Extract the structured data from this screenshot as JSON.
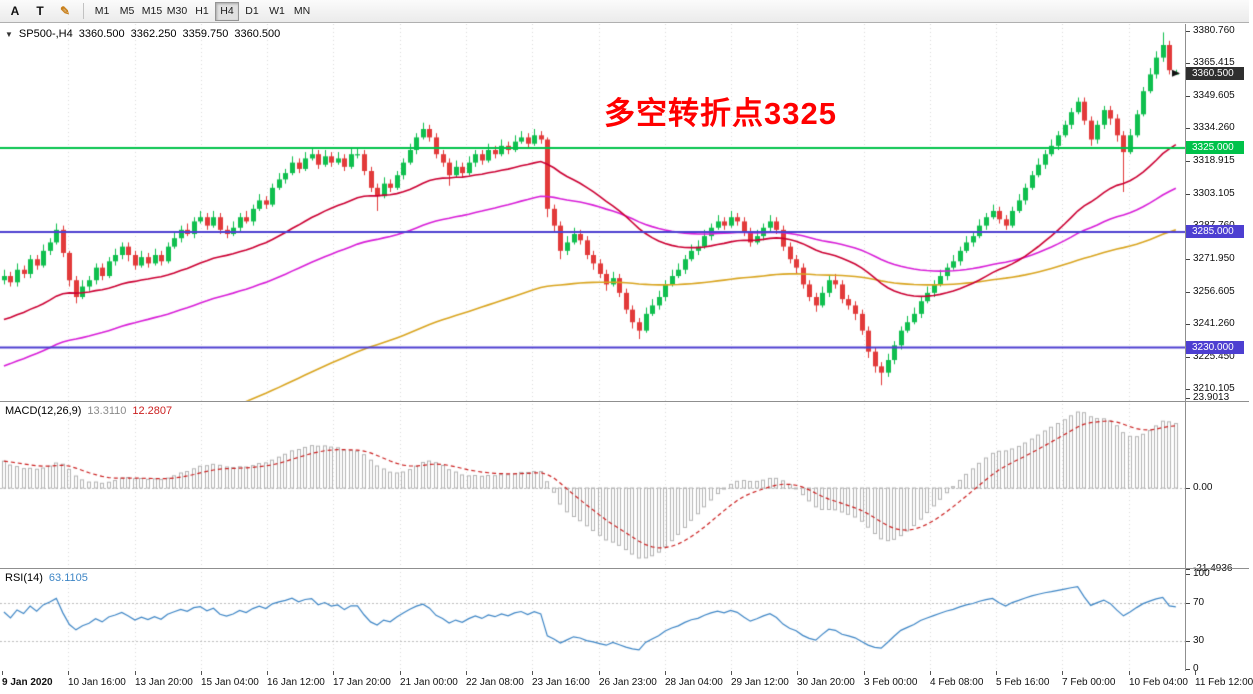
{
  "toolbar": {
    "tools": [
      {
        "id": "text-a",
        "label": "A",
        "color": "#111111"
      },
      {
        "id": "text-t",
        "label": "T",
        "color": "#111111"
      },
      {
        "id": "draw-pencil",
        "label": "✎",
        "color": "#c87f1a"
      }
    ],
    "timeframes": [
      {
        "label": "M1",
        "active": false
      },
      {
        "label": "M5",
        "active": false
      },
      {
        "label": "M15",
        "active": false
      },
      {
        "label": "M30",
        "active": false
      },
      {
        "label": "H1",
        "active": false
      },
      {
        "label": "H4",
        "active": true
      },
      {
        "label": "D1",
        "active": false
      },
      {
        "label": "W1",
        "active": false
      },
      {
        "label": "MN",
        "active": false
      }
    ]
  },
  "chart": {
    "info": {
      "symbol_period": "SP500-,H4",
      "open": "3360.500",
      "high": "3362.250",
      "low": "3359.750",
      "close": "3360.500"
    },
    "annotation": {
      "text": "多空转折点3325",
      "color": "#ff0000"
    },
    "macd_label": {
      "name": "MACD(12,26,9)",
      "main_value": "13.3110",
      "signal_value": "12.2807"
    },
    "rsi_label": {
      "name": "RSI(14)",
      "value": "63.1105"
    }
  },
  "chart_data": {
    "type": "candlestick",
    "symbol": "SP500-",
    "period": "H4",
    "price_axis": {
      "max": 3384.0,
      "min": 3204.5,
      "labels": [
        "3380.760",
        "3365.415",
        "3349.605",
        "3334.260",
        "3318.915",
        "3303.105",
        "3287.760",
        "3271.950",
        "3256.605",
        "3241.260",
        "3225.450",
        "3210.105"
      ]
    },
    "current_price": {
      "value": 3360.5,
      "label": "3360.500",
      "badge_color": "#2f2f2f"
    },
    "hlines": [
      {
        "price": 3325,
        "label": "3325.000",
        "color": "#00c24a"
      },
      {
        "price": 3285,
        "label": "3285.000",
        "color": "#4d3fd1"
      },
      {
        "price": 3230,
        "label": "3230.000",
        "color": "#4d3fd1"
      }
    ],
    "up_color": "#0fbf4e",
    "down_color": "#e23a3a",
    "ma_overlays": [
      {
        "name": "ma-slow-orange",
        "method": "ema",
        "period": 140,
        "seed": 3152,
        "color": "#d9a520"
      },
      {
        "name": "ma-mid-magenta",
        "method": "ema",
        "period": 72,
        "seed": 3220,
        "color": "#d81ed8"
      },
      {
        "name": "ma-fast-red",
        "method": "ema",
        "period": 34,
        "seed": 3242,
        "color": "#cc0033"
      }
    ],
    "ohlc": [
      [
        3262,
        3267,
        3260,
        3264
      ],
      [
        3264,
        3266,
        3259,
        3261
      ],
      [
        3261,
        3270,
        3259,
        3267
      ],
      [
        3267,
        3269,
        3263,
        3265
      ],
      [
        3265,
        3274,
        3263,
        3272
      ],
      [
        3272,
        3274,
        3267,
        3269
      ],
      [
        3269,
        3279,
        3268,
        3276
      ],
      [
        3276,
        3282,
        3274,
        3280
      ],
      [
        3280,
        3289,
        3279,
        3286
      ],
      [
        3286,
        3288,
        3273,
        3275
      ],
      [
        3275,
        3276,
        3259,
        3262
      ],
      [
        3262,
        3264,
        3251,
        3254
      ],
      [
        3254,
        3262,
        3253,
        3259
      ],
      [
        3259,
        3264,
        3257,
        3262
      ],
      [
        3262,
        3270,
        3260,
        3268
      ],
      [
        3268,
        3270,
        3262,
        3264
      ],
      [
        3264,
        3273,
        3263,
        3271
      ],
      [
        3271,
        3277,
        3269,
        3274
      ],
      [
        3274,
        3280,
        3272,
        3278
      ],
      [
        3278,
        3280,
        3271,
        3274
      ],
      [
        3274,
        3276,
        3267,
        3269
      ],
      [
        3269,
        3276,
        3268,
        3273
      ],
      [
        3273,
        3275,
        3268,
        3270
      ],
      [
        3270,
        3277,
        3269,
        3274
      ],
      [
        3274,
        3276,
        3269,
        3271
      ],
      [
        3271,
        3280,
        3270,
        3278
      ],
      [
        3278,
        3285,
        3277,
        3282
      ],
      [
        3282,
        3288,
        3280,
        3286
      ],
      [
        3286,
        3289,
        3283,
        3284
      ],
      [
        3284,
        3292,
        3282,
        3290
      ],
      [
        3290,
        3295,
        3289,
        3292
      ],
      [
        3292,
        3294,
        3286,
        3288
      ],
      [
        3288,
        3295,
        3287,
        3292
      ],
      [
        3292,
        3294,
        3284,
        3286
      ],
      [
        3286,
        3288,
        3282,
        3284
      ],
      [
        3284,
        3290,
        3283,
        3287
      ],
      [
        3287,
        3294,
        3285,
        3292
      ],
      [
        3292,
        3295,
        3289,
        3290
      ],
      [
        3290,
        3298,
        3288,
        3296
      ],
      [
        3296,
        3303,
        3295,
        3300
      ],
      [
        3300,
        3302,
        3296,
        3298
      ],
      [
        3298,
        3308,
        3297,
        3306
      ],
      [
        3306,
        3313,
        3305,
        3310
      ],
      [
        3310,
        3315,
        3308,
        3313
      ],
      [
        3313,
        3321,
        3312,
        3318
      ],
      [
        3318,
        3320,
        3313,
        3315
      ],
      [
        3315,
        3323,
        3314,
        3320
      ],
      [
        3320,
        3325,
        3319,
        3322
      ],
      [
        3322,
        3324,
        3315,
        3317
      ],
      [
        3317,
        3324,
        3316,
        3321
      ],
      [
        3321,
        3323,
        3316,
        3318
      ],
      [
        3318,
        3323,
        3317,
        3320
      ],
      [
        3320,
        3322,
        3314,
        3316
      ],
      [
        3316,
        3325,
        3315,
        3322
      ],
      [
        3322,
        3325,
        3320,
        3322
      ],
      [
        3322,
        3324,
        3312,
        3314
      ],
      [
        3314,
        3316,
        3304,
        3306
      ],
      [
        3306,
        3308,
        3295,
        3302
      ],
      [
        3302,
        3311,
        3301,
        3308
      ],
      [
        3308,
        3310,
        3304,
        3306
      ],
      [
        3306,
        3314,
        3305,
        3312
      ],
      [
        3312,
        3320,
        3310,
        3318
      ],
      [
        3318,
        3327,
        3317,
        3324
      ],
      [
        3324,
        3332,
        3322,
        3330
      ],
      [
        3330,
        3337,
        3329,
        3334
      ],
      [
        3334,
        3336,
        3328,
        3330
      ],
      [
        3330,
        3332,
        3320,
        3322
      ],
      [
        3322,
        3324,
        3316,
        3318
      ],
      [
        3318,
        3320,
        3307,
        3312
      ],
      [
        3312,
        3319,
        3311,
        3316
      ],
      [
        3316,
        3318,
        3311,
        3313
      ],
      [
        3313,
        3321,
        3312,
        3318
      ],
      [
        3318,
        3324,
        3316,
        3322
      ],
      [
        3322,
        3324,
        3317,
        3319
      ],
      [
        3319,
        3327,
        3318,
        3324
      ],
      [
        3324,
        3326,
        3320,
        3322
      ],
      [
        3322,
        3329,
        3321,
        3326
      ],
      [
        3326,
        3328,
        3322,
        3324
      ],
      [
        3324,
        3331,
        3323,
        3328
      ],
      [
        3328,
        3333,
        3327,
        3330
      ],
      [
        3330,
        3332,
        3325,
        3327
      ],
      [
        3327,
        3334,
        3326,
        3331
      ],
      [
        3331,
        3333,
        3327,
        3329
      ],
      [
        3329,
        3330,
        3292,
        3296
      ],
      [
        3296,
        3298,
        3285,
        3288
      ],
      [
        3288,
        3290,
        3272,
        3276
      ],
      [
        3276,
        3283,
        3274,
        3280
      ],
      [
        3280,
        3287,
        3279,
        3284
      ],
      [
        3284,
        3286,
        3279,
        3281
      ],
      [
        3281,
        3283,
        3272,
        3274
      ],
      [
        3274,
        3276,
        3267,
        3270
      ],
      [
        3270,
        3272,
        3263,
        3265
      ],
      [
        3265,
        3267,
        3257,
        3260
      ],
      [
        3260,
        3266,
        3259,
        3263
      ],
      [
        3263,
        3265,
        3254,
        3256
      ],
      [
        3256,
        3258,
        3246,
        3248
      ],
      [
        3248,
        3250,
        3239,
        3242
      ],
      [
        3242,
        3244,
        3234,
        3238
      ],
      [
        3238,
        3249,
        3237,
        3246
      ],
      [
        3246,
        3253,
        3245,
        3250
      ],
      [
        3250,
        3257,
        3248,
        3254
      ],
      [
        3254,
        3262,
        3252,
        3260
      ],
      [
        3260,
        3267,
        3259,
        3264
      ],
      [
        3264,
        3270,
        3263,
        3267
      ],
      [
        3267,
        3274,
        3265,
        3272
      ],
      [
        3272,
        3279,
        3271,
        3276
      ],
      [
        3276,
        3281,
        3274,
        3278
      ],
      [
        3278,
        3286,
        3277,
        3283
      ],
      [
        3283,
        3289,
        3281,
        3287
      ],
      [
        3287,
        3293,
        3286,
        3290
      ],
      [
        3290,
        3292,
        3286,
        3288
      ],
      [
        3288,
        3295,
        3287,
        3292
      ],
      [
        3292,
        3294,
        3288,
        3290
      ],
      [
        3290,
        3292,
        3283,
        3285
      ],
      [
        3285,
        3287,
        3278,
        3280
      ],
      [
        3280,
        3286,
        3279,
        3283
      ],
      [
        3283,
        3289,
        3281,
        3287
      ],
      [
        3287,
        3293,
        3285,
        3290
      ],
      [
        3290,
        3292,
        3284,
        3286
      ],
      [
        3286,
        3288,
        3276,
        3278
      ],
      [
        3278,
        3280,
        3270,
        3272
      ],
      [
        3272,
        3274,
        3265,
        3268
      ],
      [
        3268,
        3270,
        3258,
        3260
      ],
      [
        3260,
        3262,
        3252,
        3254
      ],
      [
        3254,
        3256,
        3247,
        3250
      ],
      [
        3250,
        3259,
        3249,
        3256
      ],
      [
        3256,
        3264,
        3254,
        3262
      ],
      [
        3262,
        3265,
        3258,
        3260
      ],
      [
        3260,
        3262,
        3251,
        3253
      ],
      [
        3253,
        3255,
        3248,
        3250
      ],
      [
        3250,
        3252,
        3243,
        3246
      ],
      [
        3246,
        3248,
        3236,
        3238
      ],
      [
        3238,
        3240,
        3225,
        3228
      ],
      [
        3228,
        3230,
        3218,
        3221
      ],
      [
        3221,
        3223,
        3212,
        3218
      ],
      [
        3218,
        3227,
        3216,
        3224
      ],
      [
        3224,
        3233,
        3222,
        3231
      ],
      [
        3231,
        3240,
        3229,
        3238
      ],
      [
        3238,
        3245,
        3237,
        3242
      ],
      [
        3242,
        3249,
        3241,
        3246
      ],
      [
        3246,
        3254,
        3244,
        3252
      ],
      [
        3252,
        3259,
        3251,
        3256
      ],
      [
        3256,
        3262,
        3254,
        3260
      ],
      [
        3260,
        3267,
        3259,
        3264
      ],
      [
        3264,
        3270,
        3262,
        3268
      ],
      [
        3268,
        3274,
        3267,
        3271
      ],
      [
        3271,
        3278,
        3269,
        3276
      ],
      [
        3276,
        3283,
        3275,
        3280
      ],
      [
        3280,
        3285,
        3278,
        3283
      ],
      [
        3283,
        3291,
        3282,
        3288
      ],
      [
        3288,
        3294,
        3286,
        3292
      ],
      [
        3292,
        3298,
        3291,
        3295
      ],
      [
        3295,
        3297,
        3289,
        3291
      ],
      [
        3291,
        3293,
        3286,
        3288
      ],
      [
        3288,
        3297,
        3287,
        3295
      ],
      [
        3295,
        3303,
        3294,
        3300
      ],
      [
        3300,
        3308,
        3298,
        3306
      ],
      [
        3306,
        3314,
        3305,
        3312
      ],
      [
        3312,
        3320,
        3311,
        3317
      ],
      [
        3317,
        3324,
        3315,
        3322
      ],
      [
        3322,
        3329,
        3321,
        3326
      ],
      [
        3326,
        3333,
        3324,
        3331
      ],
      [
        3331,
        3338,
        3330,
        3336
      ],
      [
        3336,
        3344,
        3334,
        3342
      ],
      [
        3342,
        3349,
        3341,
        3347
      ],
      [
        3347,
        3349,
        3336,
        3338
      ],
      [
        3338,
        3340,
        3326,
        3329
      ],
      [
        3329,
        3338,
        3327,
        3336
      ],
      [
        3336,
        3345,
        3334,
        3343
      ],
      [
        3343,
        3345,
        3336,
        3339
      ],
      [
        3339,
        3341,
        3328,
        3331
      ],
      [
        3331,
        3333,
        3304,
        3323
      ],
      [
        3323,
        3334,
        3322,
        3331
      ],
      [
        3331,
        3343,
        3330,
        3341
      ],
      [
        3341,
        3354,
        3340,
        3352
      ],
      [
        3352,
        3363,
        3351,
        3360
      ],
      [
        3360,
        3371,
        3358,
        3368
      ],
      [
        3368,
        3380,
        3366,
        3374
      ],
      [
        3374,
        3376,
        3360,
        3362
      ],
      [
        3360.5,
        3362.25,
        3359.75,
        3360.5
      ]
    ],
    "time_labels": [
      "9 Jan 2020",
      "10 Jan 16:00",
      "13 Jan 20:00",
      "15 Jan 04:00",
      "16 Jan 12:00",
      "17 Jan 20:00",
      "21 Jan 00:00",
      "22 Jan 08:00",
      "23 Jan 16:00",
      "26 Jan 23:00",
      "28 Jan 04:00",
      "29 Jan 12:00",
      "30 Jan 20:00",
      "3 Feb 00:00",
      "4 Feb 08:00",
      "5 Feb 16:00",
      "7 Feb 00:00",
      "10 Feb 04:00",
      "11 Feb 12:00"
    ],
    "macd": {
      "fast": 12,
      "slow": 26,
      "signal": 9,
      "axis_labels": [
        "23.9013",
        "0.00",
        "-21.4936"
      ],
      "hist_color": "#b4b4b4",
      "signal_color": "#cc2222"
    },
    "rsi": {
      "period": 14,
      "levels": [
        70,
        30
      ],
      "axis_labels": [
        "100",
        "70",
        "30",
        "0"
      ],
      "color": "#3e86c6"
    }
  }
}
